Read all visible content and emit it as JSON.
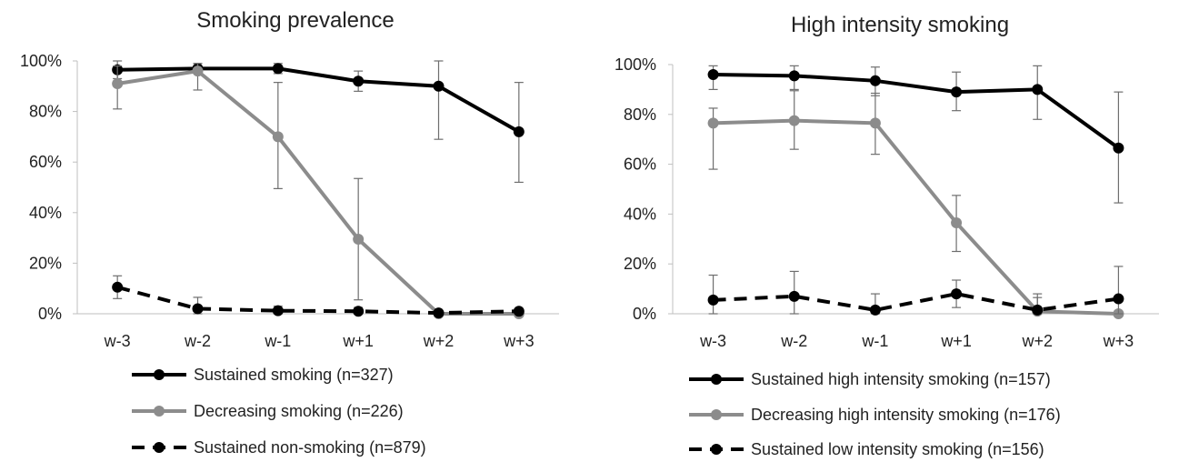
{
  "chart_data": [
    {
      "type": "line",
      "title": "Smoking prevalence",
      "xlabel": "",
      "ylabel": "",
      "categories": [
        "w-3",
        "w-2",
        "w-1",
        "w+1",
        "w+2",
        "w+3"
      ],
      "ylim": [
        0,
        1
      ],
      "yticks": [
        "0%",
        "20%",
        "40%",
        "60%",
        "80%",
        "100%"
      ],
      "grid": false,
      "legend_position": "bottom",
      "series": [
        {
          "name": "Sustained smoking (n=327)",
          "color": "#000000",
          "dash": "solid",
          "values": [
            0.965,
            0.97,
            0.97,
            0.92,
            0.9,
            0.72
          ],
          "err_low": [
            0.93,
            0.96,
            0.95,
            0.88,
            0.69,
            0.52
          ],
          "err_high": [
            1.0,
            0.99,
            0.99,
            0.96,
            1.0,
            0.915
          ]
        },
        {
          "name": "Decreasing smoking (n=226)",
          "color": "#8c8c8c",
          "dash": "solid",
          "values": [
            0.91,
            0.96,
            0.7,
            0.295,
            0.0,
            0.0
          ],
          "err_low": [
            0.81,
            0.885,
            0.495,
            0.055,
            0.0,
            0.0
          ],
          "err_high": [
            0.98,
            0.99,
            0.915,
            0.535,
            0.0,
            0.0
          ]
        },
        {
          "name": "Sustained non-smoking (n=879)",
          "color": "#000000",
          "dash": "dashed",
          "values": [
            0.105,
            0.02,
            0.012,
            0.01,
            0.003,
            0.01
          ],
          "err_low": [
            0.06,
            0.0,
            0.0,
            0.0,
            0.0,
            0.0
          ],
          "err_high": [
            0.15,
            0.065,
            0.03,
            0.025,
            0.01,
            0.02
          ]
        }
      ]
    },
    {
      "type": "line",
      "title": "High intensity smoking",
      "xlabel": "",
      "ylabel": "",
      "categories": [
        "w-3",
        "w-2",
        "w-1",
        "w+1",
        "w+2",
        "w+3"
      ],
      "ylim": [
        0,
        1
      ],
      "yticks": [
        "0%",
        "20%",
        "40%",
        "60%",
        "80%",
        "100%"
      ],
      "grid": false,
      "legend_position": "bottom",
      "series": [
        {
          "name": "Sustained high intensity smoking  (n=157)",
          "color": "#000000",
          "dash": "solid",
          "values": [
            0.96,
            0.955,
            0.935,
            0.89,
            0.9,
            0.665
          ],
          "err_low": [
            0.9,
            0.9,
            0.875,
            0.815,
            0.78,
            0.445
          ],
          "err_high": [
            0.995,
            0.995,
            0.99,
            0.97,
            0.995,
            0.89
          ]
        },
        {
          "name": "Decreasing high intensity smoking (n=176)",
          "color": "#8c8c8c",
          "dash": "solid",
          "values": [
            0.765,
            0.775,
            0.765,
            0.365,
            0.01,
            0.0
          ],
          "err_low": [
            0.58,
            0.66,
            0.64,
            0.25,
            0.0,
            0.0
          ],
          "err_high": [
            0.825,
            0.895,
            0.885,
            0.475,
            0.065,
            0.0
          ]
        },
        {
          "name": "Sustained low intensity smoking  (n=156)",
          "color": "#000000",
          "dash": "dashed",
          "values": [
            0.055,
            0.07,
            0.015,
            0.08,
            0.015,
            0.06
          ],
          "err_low": [
            0.0,
            0.0,
            0.0,
            0.025,
            0.0,
            0.0
          ],
          "err_high": [
            0.155,
            0.17,
            0.08,
            0.135,
            0.08,
            0.19
          ]
        }
      ]
    }
  ]
}
